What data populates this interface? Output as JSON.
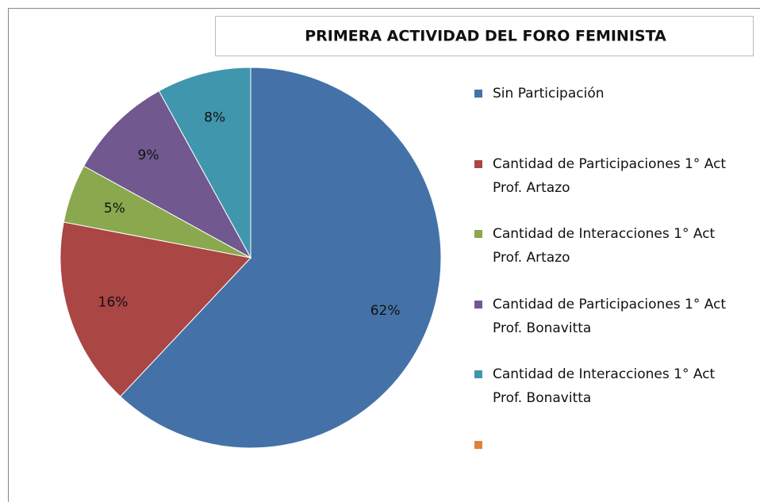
{
  "chart_data": {
    "type": "pie",
    "title": "PRIMERA ACTIVIDAD DEL FORO FEMINISTA",
    "categories": [
      "Sin Participación",
      "Cantidad de Participaciones 1° Act Prof. Artazo",
      "Cantidad de Interacciones 1° Act Prof. Artazo",
      "Cantidad de Participaciones 1° Act Prof. Bonavitta",
      "Cantidad de Interacciones 1° Act Prof. Bonavitta",
      null
    ],
    "values": [
      62,
      16,
      5,
      9,
      8,
      null
    ],
    "value_labels": [
      "62%",
      "16%",
      "5%",
      "9%",
      "8%",
      null
    ],
    "colors": [
      "#4472a8",
      "#aa4644",
      "#8aa84d",
      "#71588f",
      "#4097ad",
      "#e0813c"
    ],
    "legend": "right"
  }
}
